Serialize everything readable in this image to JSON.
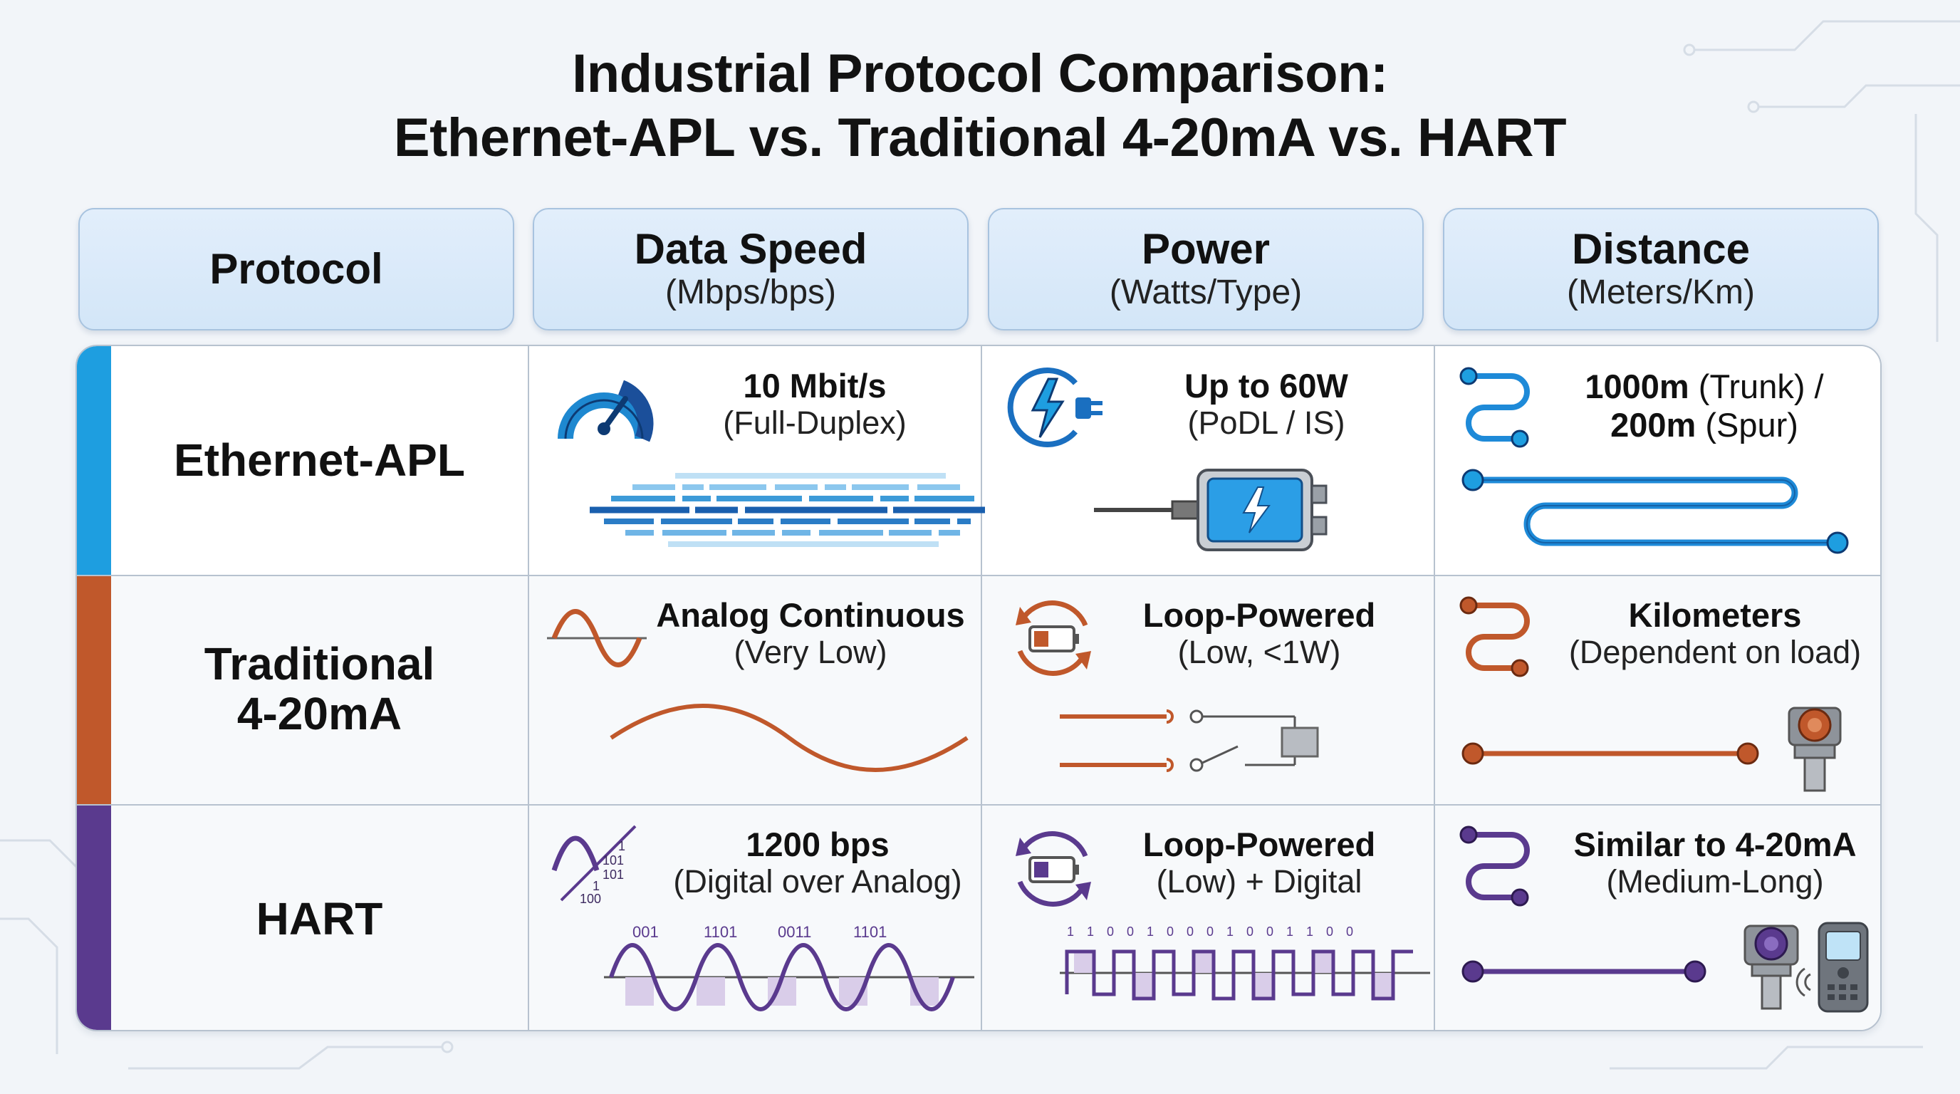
{
  "title": {
    "line1": "Industrial Protocol Comparison:",
    "line2": "Ethernet-APL vs. Traditional 4-20mA vs. HART"
  },
  "columns": [
    {
      "main": "Protocol",
      "sub": ""
    },
    {
      "main": "Data Speed",
      "sub": "(Mbps/bps)"
    },
    {
      "main": "Power",
      "sub": "(Watts/Type)"
    },
    {
      "main": "Distance",
      "sub": "(Meters/Km)"
    }
  ],
  "colors": {
    "ethernet_apl": "#1e9ee0",
    "traditional": "#c0582b",
    "hart": "#5a3a8e",
    "header_bg": "#dbeaf9",
    "grid": "#b7c2cf"
  },
  "rows": [
    {
      "protocol": "Ethernet-APL",
      "speed": {
        "main": "10 Mbit/s",
        "sub": "(Full-Duplex)"
      },
      "power": {
        "main": "Up to 60W",
        "sub": "(PoDL / IS)"
      },
      "distance": {
        "a_bold": "1000m",
        "a_rest": " (Trunk) /",
        "b_bold": "200m",
        "b_rest": " (Spur)"
      },
      "icons": [
        "speedometer-icon",
        "lightning-plug-icon",
        "battery-device-icon",
        "cable-icon"
      ]
    },
    {
      "protocol_line1": "Traditional",
      "protocol_line2": "4-20mA",
      "speed": {
        "main": "Analog Continuous",
        "sub": "(Very Low)"
      },
      "power": {
        "main": "Loop-Powered",
        "sub": "(Low, <1W)"
      },
      "distance": {
        "main": "Kilometers",
        "sub": "(Dependent on load)"
      },
      "icons": [
        "sine-wave-icon",
        "loop-battery-icon",
        "switch-circuit-icon",
        "transmitter-icon"
      ]
    },
    {
      "protocol": "HART",
      "speed": {
        "main": "1200 bps",
        "sub": "(Digital over Analog)"
      },
      "speed_icon_bits": [
        "1",
        "101",
        "101",
        "1",
        "100"
      ],
      "speed_bits": [
        "001",
        "1101",
        "0011",
        "1101"
      ],
      "power": {
        "main": "Loop-Powered",
        "sub": "(Low) + Digital"
      },
      "power_bits": [
        "1",
        "1",
        "0",
        "0",
        "1",
        "0",
        "0",
        "0",
        "1",
        "0",
        "0",
        "1",
        "1",
        "0",
        "0"
      ],
      "distance": {
        "main": "Similar to 4-20mA",
        "sub": "(Medium-Long)"
      },
      "icons": [
        "sine-digital-icon",
        "loop-battery-icon",
        "transmitter-icon",
        "handheld-communicator-icon"
      ]
    }
  ]
}
